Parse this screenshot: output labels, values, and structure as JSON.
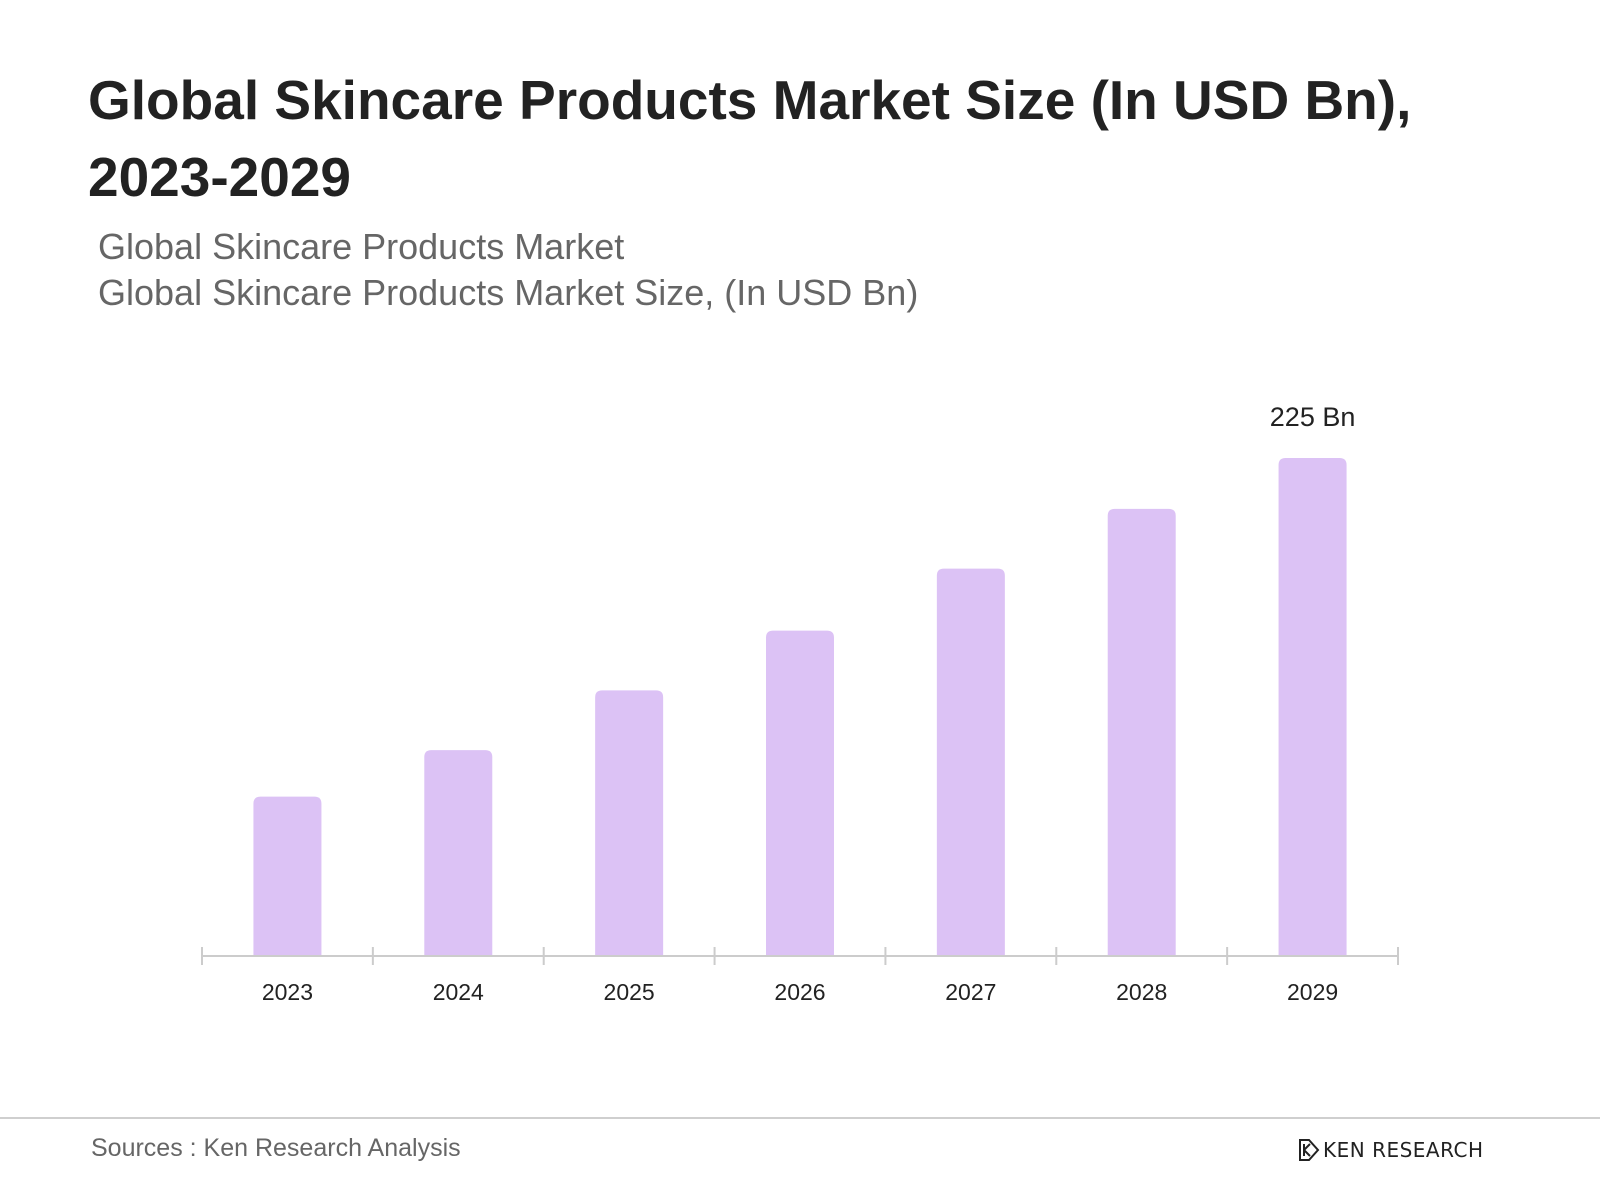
{
  "header": {
    "title": "Global Skincare Products Market Size (In USD Bn), 2023-2029",
    "subtitle_line1": "Global Skincare Products Market",
    "subtitle_line2": "Global Skincare Products Market Size, (In USD Bn)"
  },
  "chart_data": {
    "type": "bar",
    "categories": [
      "2023",
      "2024",
      "2025",
      "2026",
      "2027",
      "2028",
      "2029"
    ],
    "values": [
      72,
      93,
      120,
      147,
      175,
      202,
      225
    ],
    "data_labels": [
      "",
      "",
      "",
      "",
      "",
      "",
      "225 Bn"
    ],
    "unit": "USD Bn",
    "ylim": [
      0,
      225
    ],
    "grid": false,
    "y_axis_visible": false,
    "bar_color": "#dcc2f5",
    "axis_color": "#cccccc"
  },
  "footer": {
    "source": "Sources : Ken Research Analysis",
    "brand": "KEN RESEARCH",
    "brand_icon": "ken-research-logo-icon"
  }
}
